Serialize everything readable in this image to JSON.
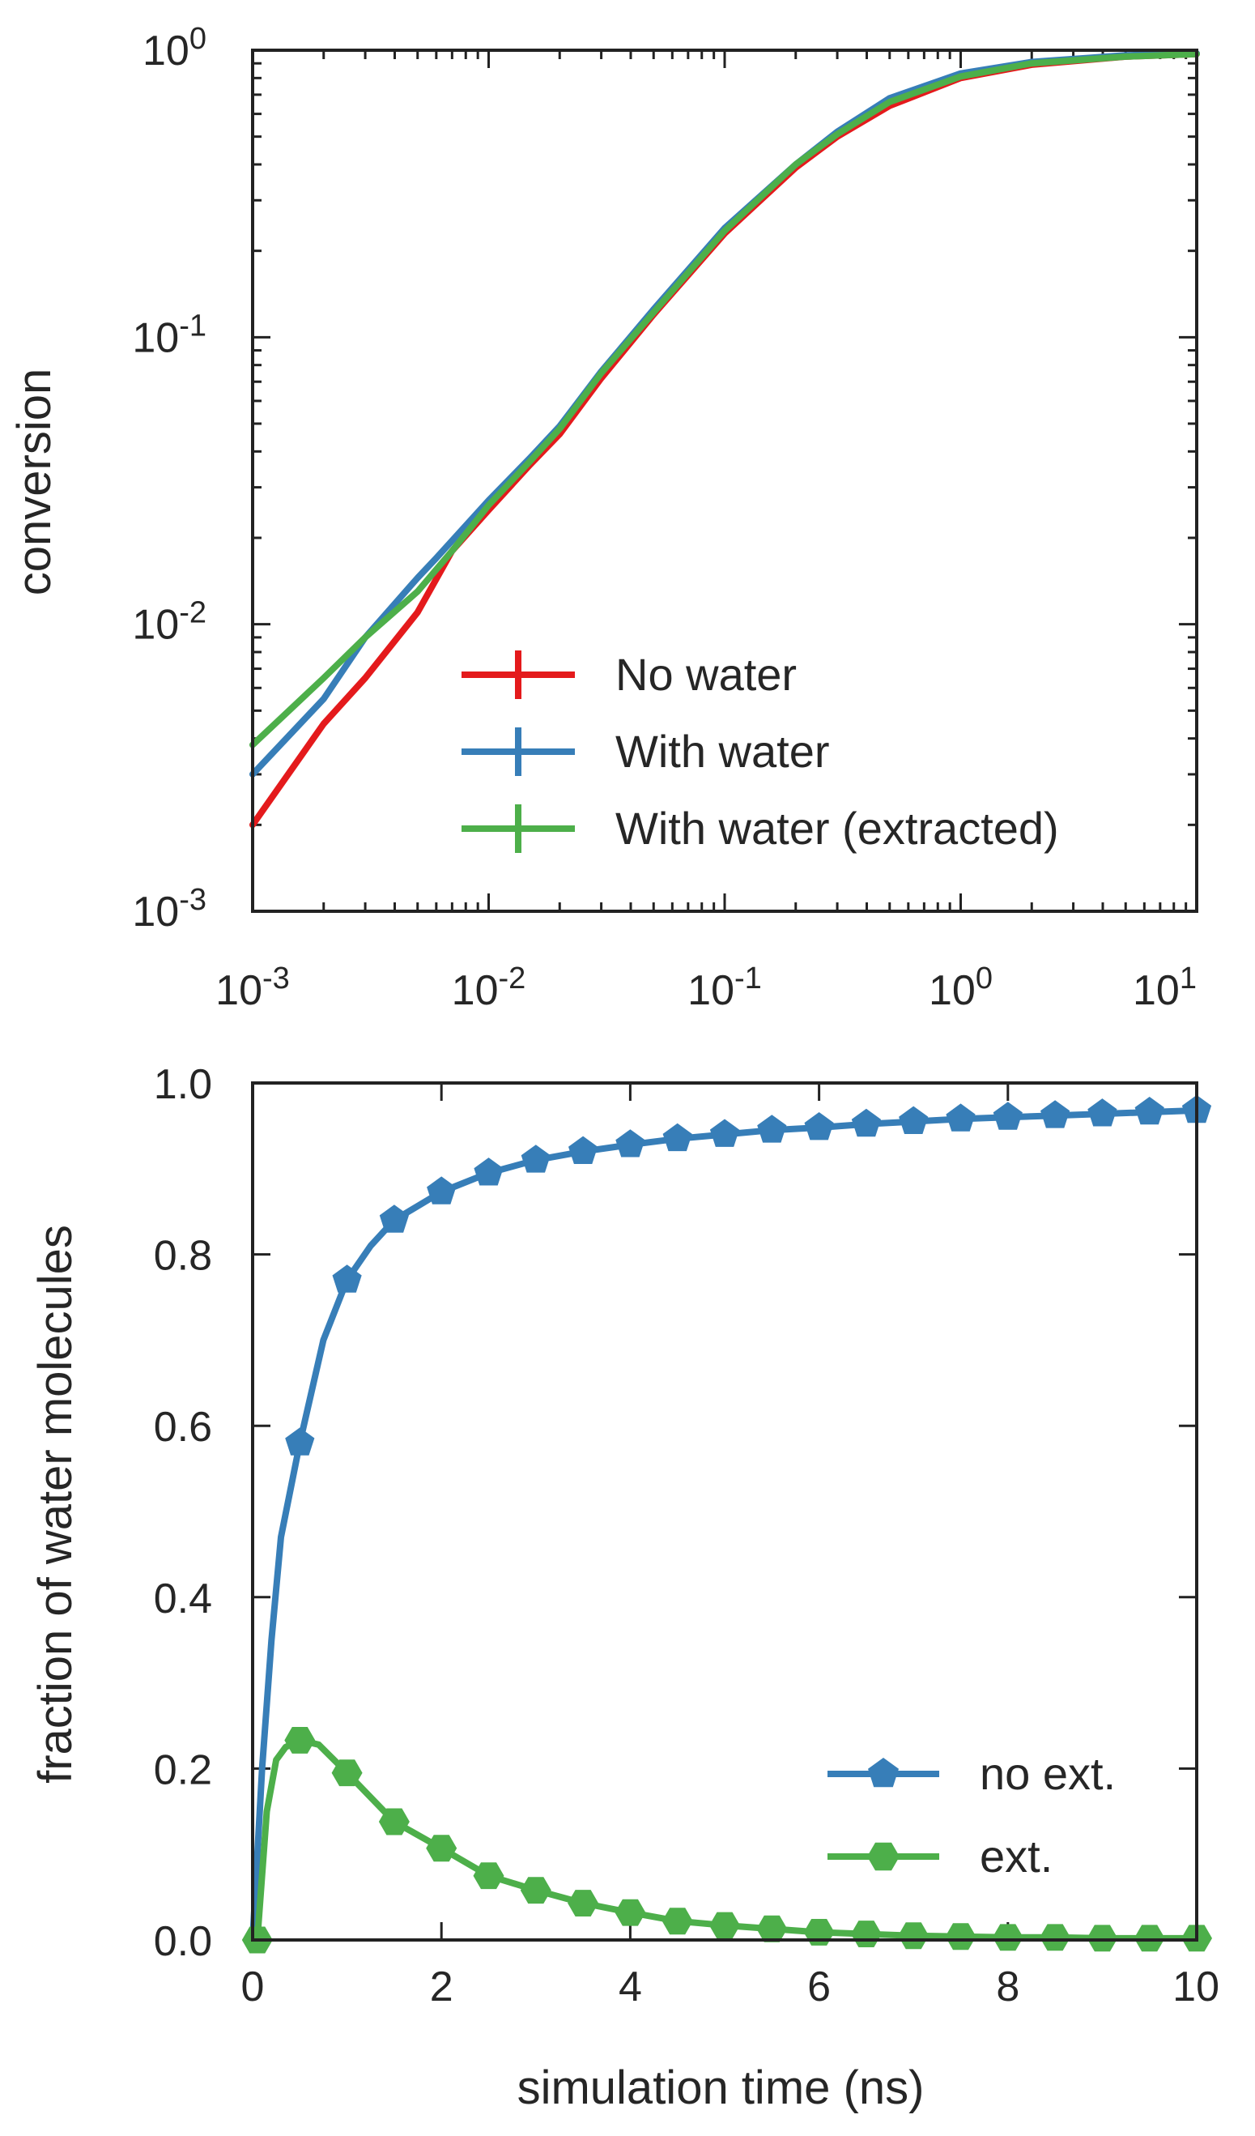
{
  "chart_data": [
    {
      "type": "line",
      "title": "",
      "xlabel": "",
      "ylabel": "conversion",
      "xscale": "log",
      "yscale": "log",
      "xlim": [
        0.001,
        10
      ],
      "ylim": [
        0.001,
        1
      ],
      "xticks": [
        {
          "base": "10",
          "exp": "-3"
        },
        {
          "base": "10",
          "exp": "-2"
        },
        {
          "base": "10",
          "exp": "-1"
        },
        {
          "base": "10",
          "exp": "0"
        },
        {
          "base": "10",
          "exp": "1"
        }
      ],
      "yticks": [
        {
          "base": "10",
          "exp": "0"
        },
        {
          "base": "10",
          "exp": "-1"
        },
        {
          "base": "10",
          "exp": "-2"
        },
        {
          "base": "10",
          "exp": "-3"
        }
      ],
      "grid": false,
      "legend_position": "lower-right",
      "series": [
        {
          "name": "No water",
          "color": "#e41a1c",
          "x": [
            0.001,
            0.002,
            0.003,
            0.005,
            0.007,
            0.01,
            0.015,
            0.02,
            0.03,
            0.05,
            0.1,
            0.2,
            0.3,
            0.5,
            1,
            2,
            5,
            10
          ],
          "y": [
            0.002,
            0.0045,
            0.0065,
            0.011,
            0.018,
            0.025,
            0.036,
            0.046,
            0.072,
            0.12,
            0.23,
            0.39,
            0.5,
            0.64,
            0.8,
            0.89,
            0.95,
            0.97
          ]
        },
        {
          "name": "With water",
          "color": "#377eb8",
          "x": [
            0.001,
            0.002,
            0.003,
            0.005,
            0.006,
            0.01,
            0.015,
            0.02,
            0.03,
            0.05,
            0.1,
            0.2,
            0.3,
            0.5,
            1,
            2,
            5,
            10
          ],
          "y": [
            0.003,
            0.0055,
            0.009,
            0.0145,
            0.017,
            0.027,
            0.038,
            0.049,
            0.076,
            0.125,
            0.24,
            0.4,
            0.52,
            0.68,
            0.83,
            0.91,
            0.96,
            0.975
          ]
        },
        {
          "name": "With water (extracted)",
          "color": "#4daf4a",
          "x": [
            0.001,
            0.002,
            0.003,
            0.005,
            0.007,
            0.01,
            0.015,
            0.02,
            0.03,
            0.05,
            0.1,
            0.2,
            0.3,
            0.5,
            1,
            2,
            5,
            10
          ],
          "y": [
            0.0038,
            0.0065,
            0.009,
            0.013,
            0.018,
            0.026,
            0.037,
            0.048,
            0.075,
            0.122,
            0.235,
            0.4,
            0.51,
            0.66,
            0.81,
            0.9,
            0.95,
            0.97
          ]
        }
      ]
    },
    {
      "type": "line",
      "title": "",
      "xlabel": "simulation time (ns)",
      "ylabel": "fraction of water molecules",
      "xlim": [
        0,
        10
      ],
      "ylim": [
        0,
        1
      ],
      "xticks": [
        "0",
        "2",
        "4",
        "6",
        "8",
        "10"
      ],
      "yticks": [
        "0.0",
        "0.2",
        "0.4",
        "0.6",
        "0.8",
        "1.0"
      ],
      "grid": false,
      "legend_position": "lower-right",
      "series": [
        {
          "name": "no ext.",
          "color": "#377eb8",
          "marker": "pentagon",
          "line_x": [
            0,
            0.1,
            0.2,
            0.3,
            0.5,
            0.75,
            1,
            1.25,
            1.5,
            2,
            2.5,
            3,
            3.5,
            4,
            4.5,
            5,
            5.5,
            6,
            6.5,
            7,
            7.5,
            8,
            8.5,
            9,
            9.5,
            10
          ],
          "line_y": [
            0,
            0.2,
            0.35,
            0.47,
            0.58,
            0.7,
            0.77,
            0.81,
            0.84,
            0.873,
            0.895,
            0.91,
            0.92,
            0.928,
            0.935,
            0.94,
            0.945,
            0.948,
            0.952,
            0.955,
            0.958,
            0.96,
            0.962,
            0.964,
            0.966,
            0.968
          ],
          "marker_x": [
            0.5,
            1,
            1.5,
            2,
            2.5,
            3,
            3.5,
            4,
            4.5,
            5,
            5.5,
            6,
            6.5,
            7,
            7.5,
            8,
            8.5,
            9,
            9.5,
            10
          ],
          "marker_y": [
            0.58,
            0.77,
            0.84,
            0.873,
            0.895,
            0.91,
            0.92,
            0.928,
            0.935,
            0.94,
            0.945,
            0.948,
            0.952,
            0.955,
            0.958,
            0.96,
            0.962,
            0.964,
            0.966,
            0.968
          ]
        },
        {
          "name": "ext.",
          "color": "#4daf4a",
          "marker": "hexagon",
          "line_x": [
            0,
            0.05,
            0.15,
            0.25,
            0.35,
            0.5,
            0.7,
            1,
            1.5,
            2,
            2.5,
            3,
            3.5,
            4,
            4.5,
            5,
            5.5,
            6,
            6.5,
            7,
            7.5,
            8,
            8.5,
            9,
            9.5,
            10
          ],
          "line_y": [
            0,
            0.0,
            0.15,
            0.21,
            0.225,
            0.233,
            0.228,
            0.195,
            0.138,
            0.107,
            0.075,
            0.058,
            0.043,
            0.032,
            0.022,
            0.017,
            0.013,
            0.009,
            0.007,
            0.005,
            0.004,
            0.003,
            0.003,
            0.002,
            0.002,
            0.002
          ],
          "marker_x": [
            0.05,
            0.5,
            1,
            1.5,
            2,
            2.5,
            3,
            3.5,
            4,
            4.5,
            5,
            5.5,
            6,
            6.5,
            7,
            7.5,
            8,
            8.5,
            9,
            9.5,
            10
          ],
          "marker_y": [
            0.0,
            0.233,
            0.195,
            0.138,
            0.107,
            0.075,
            0.058,
            0.043,
            0.032,
            0.022,
            0.017,
            0.013,
            0.009,
            0.007,
            0.005,
            0.004,
            0.003,
            0.003,
            0.002,
            0.002,
            0.002
          ]
        }
      ]
    }
  ]
}
